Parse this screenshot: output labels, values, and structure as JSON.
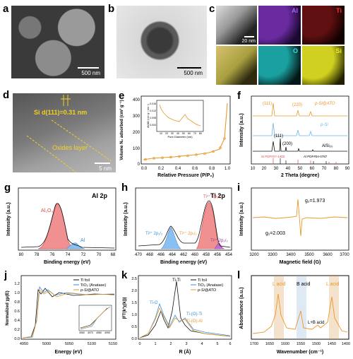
{
  "panels": {
    "a": {
      "label": "a",
      "scale": "500 nm"
    },
    "b": {
      "label": "b",
      "scale": "500 nm"
    },
    "c": {
      "label": "c",
      "scale": "20 nm",
      "elements": [
        "Al",
        "Ti",
        "O",
        "Si"
      ],
      "colors": {
        "Al": "#b05cff",
        "Ti": "#ff3030",
        "O": "#30e0e0",
        "Si": "#f0f020"
      }
    },
    "d": {
      "label": "d",
      "lattice": "Si d(111)=0.31 nm",
      "layer": "Oxides layer",
      "scale": "5 nm"
    },
    "e": {
      "label": "e",
      "ylabel": "Volume N₂ adsorbed (cm³ g⁻¹)",
      "xlabel": "Relative Pressure (P/P₀)",
      "yticks": [
        "0",
        "100",
        "200",
        "300",
        "400"
      ],
      "xticks": [
        "0.0",
        "0.2",
        "0.4",
        "0.6",
        "0.8",
        "1.0"
      ],
      "inset_ylabel": "dV/dD (cm³ g⁻¹ nm⁻¹)",
      "inset_xlabel": "Pore Diameter (nm)",
      "inset_yticks": [
        "0.016",
        "0.012",
        "0.008",
        "0.004"
      ],
      "inset_xticks": [
        "10",
        "20",
        "30",
        "40",
        "50",
        "60",
        "70",
        "80"
      ]
    },
    "f": {
      "label": "f",
      "ylabel": "Intensity (a.u.)",
      "xlabel": "2 Theta (degree)",
      "xticks": [
        "10",
        "20",
        "30",
        "40",
        "50",
        "60",
        "70",
        "80",
        "90"
      ],
      "series": [
        "p-Si@ATO",
        "p-Si",
        "AlSi₂₀"
      ],
      "peaks": [
        "(111)",
        "(220)",
        "(111)",
        "(200)"
      ],
      "refs": [
        "Si PDF#27-1402",
        "Al PDF#04-0787"
      ]
    },
    "g": {
      "label": "g",
      "title": "Al 2p",
      "ylabel": "Intensity (a.u.)",
      "xlabel": "Binding energy (eV)",
      "xticks": [
        "80",
        "78",
        "76",
        "74",
        "72",
        "70",
        "68"
      ],
      "peak1": "Al₂O₃",
      "peak2": "Al"
    },
    "h": {
      "label": "h",
      "title": "Ti 2p",
      "ylabel": "Intensity (a.u.)",
      "xlabel": "Binding energy (eV)",
      "xticks": [
        "470",
        "468",
        "466",
        "464",
        "462",
        "460",
        "458",
        "456",
        "454"
      ],
      "p1": "Ti⁴⁺ 2p₃/₂",
      "p2": "Ti⁴⁺ 2p₁/₂",
      "p3": "Ti³⁺ 2p₁/₂",
      "p4": "Ti³⁺ 2p₃/₂"
    },
    "i": {
      "label": "i",
      "ylabel": "Intensity (a.u.)",
      "xlabel": "Magnetic field (G)",
      "xticks": [
        "3200",
        "3300",
        "3400",
        "3500",
        "3600",
        "3700"
      ],
      "g1": "g₁=2.003",
      "g2": "g₂=1.973"
    },
    "j": {
      "label": "j",
      "ylabel": "Normalized χμ(E)",
      "xlabel": "Energy (eV)",
      "xticks": [
        "4950",
        "5000",
        "5050",
        "5100",
        "5150"
      ],
      "yticks": [
        "0.0",
        "0.2",
        "0.4",
        "0.6",
        "0.8",
        "1.0",
        "1.2"
      ],
      "legend": [
        "Ti foil",
        "TiO₂ (Anatase)",
        "p-Si@ATO"
      ],
      "inset_xticks": [
        "4960",
        "4970",
        "4980",
        "4990"
      ]
    },
    "k": {
      "label": "k",
      "ylabel": "|FT(k³χ(k))|",
      "xlabel": "R (Å)",
      "xticks": [
        "0",
        "1",
        "2",
        "3",
        "4",
        "5",
        "6"
      ],
      "yticks": [
        "0.0",
        "0.5",
        "1.0",
        "1.5",
        "2.0",
        "2.5"
      ],
      "legend": [
        "Ti foil",
        "TiO₂ (Anatase)",
        "p-Si@ATO"
      ],
      "ann": [
        "Ti-Ti",
        "Ti-O",
        "Ti-(O)-Ti",
        "Ti-(O)-Al"
      ]
    },
    "l": {
      "label": "l",
      "ylabel": "Absorbance (a.u.)",
      "xlabel": "Wavenumber (cm⁻¹)",
      "xticks": [
        "1700",
        "1650",
        "1600",
        "1550",
        "1500",
        "1450",
        "1400"
      ],
      "ann": [
        "L acid",
        "B acid",
        "L acid",
        "L+B acid"
      ]
    }
  },
  "colors": {
    "orange": "#e8982a",
    "blue": "#3a8fd6",
    "black": "#111111",
    "red": "#e04848",
    "purple": "#9a3aa8"
  }
}
